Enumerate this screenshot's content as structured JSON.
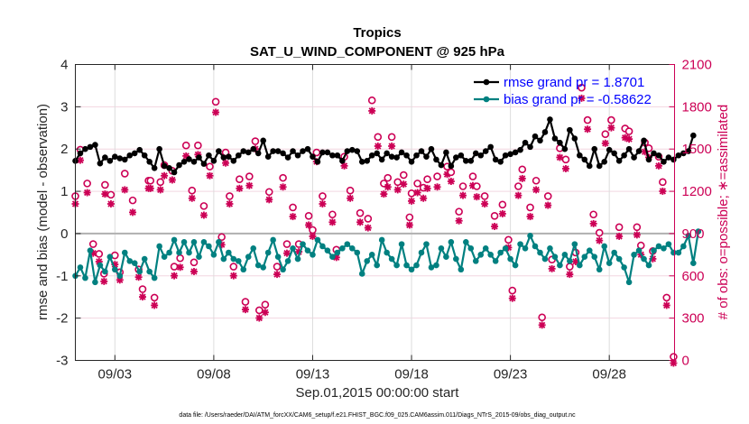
{
  "chart_data": {
    "type": "line",
    "title": "Tropics",
    "subtitle": "SAT_U_WIND_COMPONENT @ 925 hPa",
    "xlabel": "Sep.01,2015 00:00:00 start",
    "ylabel": "rmse and bias (model - observation)",
    "y2label": "# of obs: o=possible; ∗=assimilated",
    "xlim_days": [
      0,
      30.3
    ],
    "ylim": [
      -3,
      4
    ],
    "y2lim": [
      0,
      2100
    ],
    "x_ticks": [
      {
        "day": 2,
        "label": "09/03"
      },
      {
        "day": 7,
        "label": "09/08"
      },
      {
        "day": 12,
        "label": "09/13"
      },
      {
        "day": 17,
        "label": "09/18"
      },
      {
        "day": 22,
        "label": "09/23"
      },
      {
        "day": 27,
        "label": "09/28"
      }
    ],
    "y_ticks": [
      4,
      3,
      2,
      1,
      0,
      -1,
      -2,
      -3
    ],
    "y2_ticks": [
      2100,
      1800,
      1500,
      1200,
      900,
      600,
      300,
      0
    ],
    "grid": true,
    "legend_position": "top-right",
    "legend": [
      {
        "name": "rmse grand pr = 1.8701",
        "color": "#000000"
      },
      {
        "name": "bias grand pr = -0.58622",
        "color": "#008080"
      }
    ],
    "time_step_days": 0.25,
    "series": [
      {
        "name": "rmse",
        "color": "#000000",
        "values": [
          1.72,
          1.9,
          2.0,
          2.05,
          2.1,
          1.66,
          1.8,
          1.72,
          1.82,
          1.78,
          1.75,
          1.85,
          1.9,
          1.98,
          1.85,
          1.7,
          1.55,
          2.0,
          1.6,
          1.55,
          1.45,
          1.62,
          1.7,
          1.76,
          1.7,
          1.8,
          1.65,
          1.85,
          1.72,
          1.95,
          1.8,
          1.82,
          1.72,
          1.85,
          1.95,
          1.92,
          2.0,
          1.9,
          2.2,
          1.82,
          1.95,
          1.95,
          1.9,
          1.8,
          1.95,
          1.85,
          1.95,
          2.0,
          1.82,
          1.7,
          1.92,
          1.92,
          1.85,
          1.85,
          1.72,
          1.95,
          1.98,
          1.95,
          1.7,
          1.72,
          1.85,
          1.9,
          1.75,
          1.9,
          1.82,
          1.8,
          1.92,
          1.85,
          1.7,
          1.85,
          1.95,
          1.82,
          2.0,
          1.75,
          1.62,
          1.92,
          1.6,
          1.8,
          1.85,
          1.72,
          1.72,
          1.9,
          1.85,
          1.95,
          2.05,
          1.75,
          1.7,
          1.85,
          1.88,
          1.92,
          1.98,
          2.15,
          2.05,
          2.3,
          2.2,
          2.4,
          2.7,
          2.25,
          2.15,
          2.0,
          2.45,
          2.25,
          1.85,
          1.75,
          1.6,
          2.0,
          1.6,
          1.7,
          1.98,
          1.9,
          1.72,
          1.85,
          2.0,
          1.8,
          1.95,
          2.2,
          1.75,
          1.9,
          1.85,
          1.7,
          1.8,
          1.75,
          1.85,
          1.9,
          1.95,
          2.32
        ]
      },
      {
        "name": "bias",
        "color": "#008080",
        "values": [
          -1.0,
          -0.8,
          -1.05,
          -0.4,
          -1.15,
          -0.75,
          -0.9,
          -0.55,
          -0.85,
          -1.0,
          -0.45,
          -0.65,
          -0.7,
          -0.9,
          -0.6,
          -0.9,
          -1.05,
          -0.3,
          -0.55,
          -0.45,
          -0.15,
          -0.45,
          -0.2,
          -0.45,
          -0.2,
          -0.55,
          -0.2,
          -0.3,
          -0.5,
          -0.2,
          -0.6,
          -0.45,
          -0.6,
          -0.65,
          -0.85,
          -0.55,
          -0.35,
          -0.75,
          -0.8,
          -0.45,
          -0.15,
          -0.55,
          -0.85,
          -0.65,
          -0.35,
          -0.6,
          -0.25,
          -0.4,
          -0.5,
          -0.15,
          -0.3,
          -0.4,
          -0.55,
          -0.45,
          -0.35,
          -0.25,
          -0.35,
          -0.45,
          -0.95,
          -0.65,
          -0.5,
          -0.75,
          -0.15,
          -0.45,
          -0.6,
          -0.75,
          -0.25,
          -0.75,
          -0.85,
          -0.75,
          -0.45,
          -0.25,
          -0.8,
          -0.75,
          -0.35,
          -0.55,
          -0.2,
          -0.6,
          -0.85,
          -0.2,
          -0.35,
          -0.65,
          -0.5,
          -0.35,
          -0.5,
          -0.65,
          -0.45,
          -0.35,
          -0.6,
          -0.75,
          -0.25,
          -0.35,
          -0.05,
          -0.3,
          -0.45,
          -0.6,
          -0.35,
          -0.55,
          -0.75,
          -0.5,
          -0.65,
          -0.25,
          -0.75,
          -0.55,
          -0.4,
          -0.55,
          -0.85,
          -0.3,
          -0.7,
          -0.45,
          -0.6,
          -0.8,
          -1.15,
          -0.5,
          -0.4,
          -0.6,
          -0.75,
          -0.4,
          -0.3,
          -0.35,
          -0.25,
          -0.45,
          -0.45,
          -0.3,
          -0.05,
          -0.7,
          0.05
        ]
      }
    ],
    "obs": {
      "color": "#cc0055",
      "points": [
        {
          "day": 0.0,
          "possible": 1140,
          "assimilated": 1130
        },
        {
          "day": 0.25,
          "possible": 1470,
          "assimilated": 1440
        },
        {
          "day": 0.6,
          "possible": 1230,
          "assimilated": 1210
        },
        {
          "day": 0.9,
          "possible": 800,
          "assimilated": 780
        },
        {
          "day": 1.2,
          "possible": 730,
          "assimilated": 720
        },
        {
          "day": 1.45,
          "possible": 590,
          "assimilated": 580
        },
        {
          "day": 1.5,
          "possible": 1220,
          "assimilated": 1200
        },
        {
          "day": 1.8,
          "possible": 1150,
          "assimilated": 1130
        },
        {
          "day": 2.0,
          "possible": 720,
          "assimilated": 700
        },
        {
          "day": 2.25,
          "possible": 600,
          "assimilated": 590
        },
        {
          "day": 2.5,
          "possible": 1300,
          "assimilated": 1230
        },
        {
          "day": 2.9,
          "possible": 1110,
          "assimilated": 1070
        },
        {
          "day": 3.2,
          "possible": 620,
          "assimilated": 610
        },
        {
          "day": 3.4,
          "possible": 480,
          "assimilated": 470
        },
        {
          "day": 3.7,
          "possible": 1250,
          "assimilated": 1240
        },
        {
          "day": 3.8,
          "possible": 1250,
          "assimilated": 1240
        },
        {
          "day": 4.0,
          "possible": 420,
          "assimilated": 410
        },
        {
          "day": 4.3,
          "possible": 1240,
          "assimilated": 1230
        },
        {
          "day": 4.5,
          "possible": 1360,
          "assimilated": 1330
        },
        {
          "day": 4.9,
          "possible": 1320,
          "assimilated": 1300
        },
        {
          "day": 5.0,
          "possible": 640,
          "assimilated": 620
        },
        {
          "day": 5.3,
          "possible": 700,
          "assimilated": 680
        },
        {
          "day": 5.6,
          "possible": 1500,
          "assimilated": 1470
        },
        {
          "day": 5.9,
          "possible": 1180,
          "assimilated": 1170
        },
        {
          "day": 6.0,
          "possible": 670,
          "assimilated": 650
        },
        {
          "day": 6.2,
          "possible": 1500,
          "assimilated": 1480
        },
        {
          "day": 6.5,
          "possible": 1070,
          "assimilated": 1050
        },
        {
          "day": 6.8,
          "possible": 1350,
          "assimilated": 1330
        },
        {
          "day": 7.1,
          "possible": 1810,
          "assimilated": 1780
        },
        {
          "day": 7.4,
          "possible": 850,
          "assimilated": 840
        },
        {
          "day": 7.6,
          "possible": 1450,
          "assimilated": 1420
        },
        {
          "day": 7.8,
          "possible": 1140,
          "assimilated": 1130
        },
        {
          "day": 8.0,
          "possible": 640,
          "assimilated": 620
        },
        {
          "day": 8.3,
          "possible": 1260,
          "assimilated": 1240
        },
        {
          "day": 8.6,
          "possible": 390,
          "assimilated": 380
        },
        {
          "day": 8.8,
          "possible": 1280,
          "assimilated": 1260
        },
        {
          "day": 9.1,
          "possible": 1530,
          "assimilated": 1520
        },
        {
          "day": 9.3,
          "possible": 330,
          "assimilated": 320
        },
        {
          "day": 9.6,
          "possible": 370,
          "assimilated": 360
        },
        {
          "day": 9.8,
          "possible": 1170,
          "assimilated": 1160
        },
        {
          "day": 10.2,
          "possible": 640,
          "assimilated": 630
        },
        {
          "day": 10.5,
          "possible": 1270,
          "assimilated": 1250
        },
        {
          "day": 10.7,
          "possible": 800,
          "assimilated": 780
        },
        {
          "day": 11.0,
          "possible": 1060,
          "assimilated": 1040
        },
        {
          "day": 11.3,
          "possible": 800,
          "assimilated": 790
        },
        {
          "day": 11.8,
          "possible": 1000,
          "assimilated": 980
        },
        {
          "day": 12.0,
          "possible": 900,
          "assimilated": 900
        },
        {
          "day": 12.2,
          "possible": 1450,
          "assimilated": 1430
        },
        {
          "day": 12.5,
          "possible": 1140,
          "assimilated": 1130
        },
        {
          "day": 13.0,
          "possible": 1010,
          "assimilated": 1000
        },
        {
          "day": 13.2,
          "possible": 760,
          "assimilated": 750
        },
        {
          "day": 13.6,
          "possible": 1420,
          "assimilated": 1400
        },
        {
          "day": 13.9,
          "possible": 1180,
          "assimilated": 1170
        },
        {
          "day": 14.4,
          "possible": 1020,
          "assimilated": 1000
        },
        {
          "day": 14.8,
          "possible": 980,
          "assimilated": 960
        },
        {
          "day": 15.0,
          "possible": 1820,
          "assimilated": 1790
        },
        {
          "day": 15.3,
          "possible": 1560,
          "assimilated": 1540
        },
        {
          "day": 15.6,
          "possible": 1230,
          "assimilated": 1200
        },
        {
          "day": 15.8,
          "possible": 1270,
          "assimilated": 1250
        },
        {
          "day": 16.0,
          "possible": 1560,
          "assimilated": 1540
        },
        {
          "day": 16.3,
          "possible": 1240,
          "assimilated": 1230
        },
        {
          "day": 16.6,
          "possible": 1290,
          "assimilated": 1270
        },
        {
          "day": 16.9,
          "possible": 990,
          "assimilated": 980
        },
        {
          "day": 17.0,
          "possible": 1160,
          "assimilated": 1150
        },
        {
          "day": 17.3,
          "possible": 1230,
          "assimilated": 1210
        },
        {
          "day": 17.6,
          "possible": 1200,
          "assimilated": 1170
        },
        {
          "day": 17.8,
          "possible": 1260,
          "assimilated": 1240
        },
        {
          "day": 18.3,
          "possible": 1280,
          "assimilated": 1250
        },
        {
          "day": 18.8,
          "possible": 1350,
          "assimilated": 1340
        },
        {
          "day": 19.0,
          "possible": 1310,
          "assimilated": 1290
        },
        {
          "day": 19.4,
          "possible": 1030,
          "assimilated": 1010
        },
        {
          "day": 19.6,
          "possible": 1210,
          "assimilated": 1190
        },
        {
          "day": 20.1,
          "possible": 1280,
          "assimilated": 1260
        },
        {
          "day": 20.3,
          "possible": 1210,
          "assimilated": 1180
        },
        {
          "day": 20.7,
          "possible": 1140,
          "assimilated": 1130
        },
        {
          "day": 21.2,
          "possible": 1000,
          "assimilated": 970
        },
        {
          "day": 21.6,
          "possible": 1080,
          "assimilated": 1060
        },
        {
          "day": 21.9,
          "possible": 830,
          "assimilated": 820
        },
        {
          "day": 22.1,
          "possible": 470,
          "assimilated": 460
        },
        {
          "day": 22.4,
          "possible": 1210,
          "assimilated": 1190
        },
        {
          "day": 22.6,
          "possible": 1330,
          "assimilated": 1310
        },
        {
          "day": 23.0,
          "possible": 1060,
          "assimilated": 1040
        },
        {
          "day": 23.3,
          "possible": 1250,
          "assimilated": 1230
        },
        {
          "day": 23.6,
          "possible": 280,
          "assimilated": 270
        },
        {
          "day": 23.9,
          "possible": 1140,
          "assimilated": 1120
        },
        {
          "day": 24.1,
          "possible": 690,
          "assimilated": 670
        },
        {
          "day": 24.5,
          "possible": 1480,
          "assimilated": 1460
        },
        {
          "day": 24.8,
          "possible": 1400,
          "assimilated": 1380
        },
        {
          "day": 25.0,
          "possible": 640,
          "assimilated": 630
        },
        {
          "day": 25.3,
          "possible": 740,
          "assimilated": 720
        },
        {
          "day": 25.6,
          "possible": 1910,
          "assimilated": 1880
        },
        {
          "day": 25.9,
          "possible": 1680,
          "assimilated": 1660
        },
        {
          "day": 26.2,
          "possible": 1010,
          "assimilated": 990
        },
        {
          "day": 26.5,
          "possible": 880,
          "assimilated": 870
        },
        {
          "day": 26.8,
          "possible": 1580,
          "assimilated": 1560
        },
        {
          "day": 27.1,
          "possible": 1680,
          "assimilated": 1670
        },
        {
          "day": 27.5,
          "possible": 920,
          "assimilated": 900
        },
        {
          "day": 27.8,
          "possible": 1620,
          "assimilated": 1600
        },
        {
          "day": 28.0,
          "possible": 1600,
          "assimilated": 1590
        },
        {
          "day": 28.4,
          "possible": 920,
          "assimilated": 910
        },
        {
          "day": 28.6,
          "possible": 790,
          "assimilated": 770
        },
        {
          "day": 28.8,
          "possible": 1520,
          "assimilated": 1500
        },
        {
          "day": 29.0,
          "possible": 1480,
          "assimilated": 1460
        },
        {
          "day": 29.2,
          "possible": 750,
          "assimilated": 740
        },
        {
          "day": 29.5,
          "possible": 1420,
          "assimilated": 1400
        },
        {
          "day": 29.7,
          "possible": 1240,
          "assimilated": 1220
        },
        {
          "day": 29.9,
          "possible": 420,
          "assimilated": 410
        },
        {
          "day": 30.25,
          "possible": 0,
          "assimilated": 0
        }
      ]
    },
    "footer": "data file: /Users/raeder/DAI/ATM_forcXX/CAM6_setup/f.e21.FHIST_BGC.f09_025.CAM6assim.011/Diags_NTrS_2015-09/obs_diag_output.nc"
  }
}
